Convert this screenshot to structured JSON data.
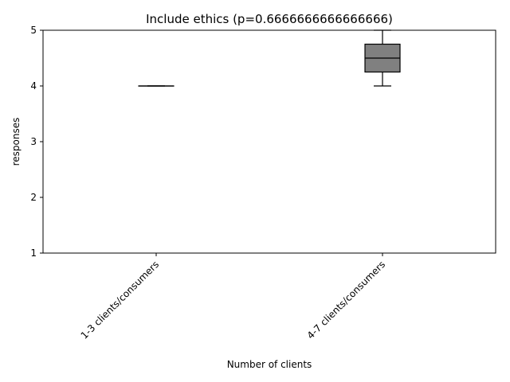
{
  "chart_data": {
    "type": "box",
    "title": "Include ethics (p=0.6666666666666666)",
    "xlabel": "Number of clients",
    "ylabel": "responses",
    "ylim": [
      1,
      5
    ],
    "yticks": [
      1,
      2,
      3,
      4,
      5
    ],
    "grid": false,
    "categories": [
      "1-3 clients/consumers",
      "4-7 clients/consumers"
    ],
    "boxes": [
      {
        "category": "1-3 clients/consumers",
        "min": 4,
        "q1": 4,
        "median": 4,
        "q3": 4,
        "max": 4
      },
      {
        "category": "4-7 clients/consumers",
        "min": 4,
        "q1": 4.25,
        "median": 4.5,
        "q3": 4.75,
        "max": 5
      }
    ],
    "box_color": "#808080",
    "line_color": "#000000"
  }
}
